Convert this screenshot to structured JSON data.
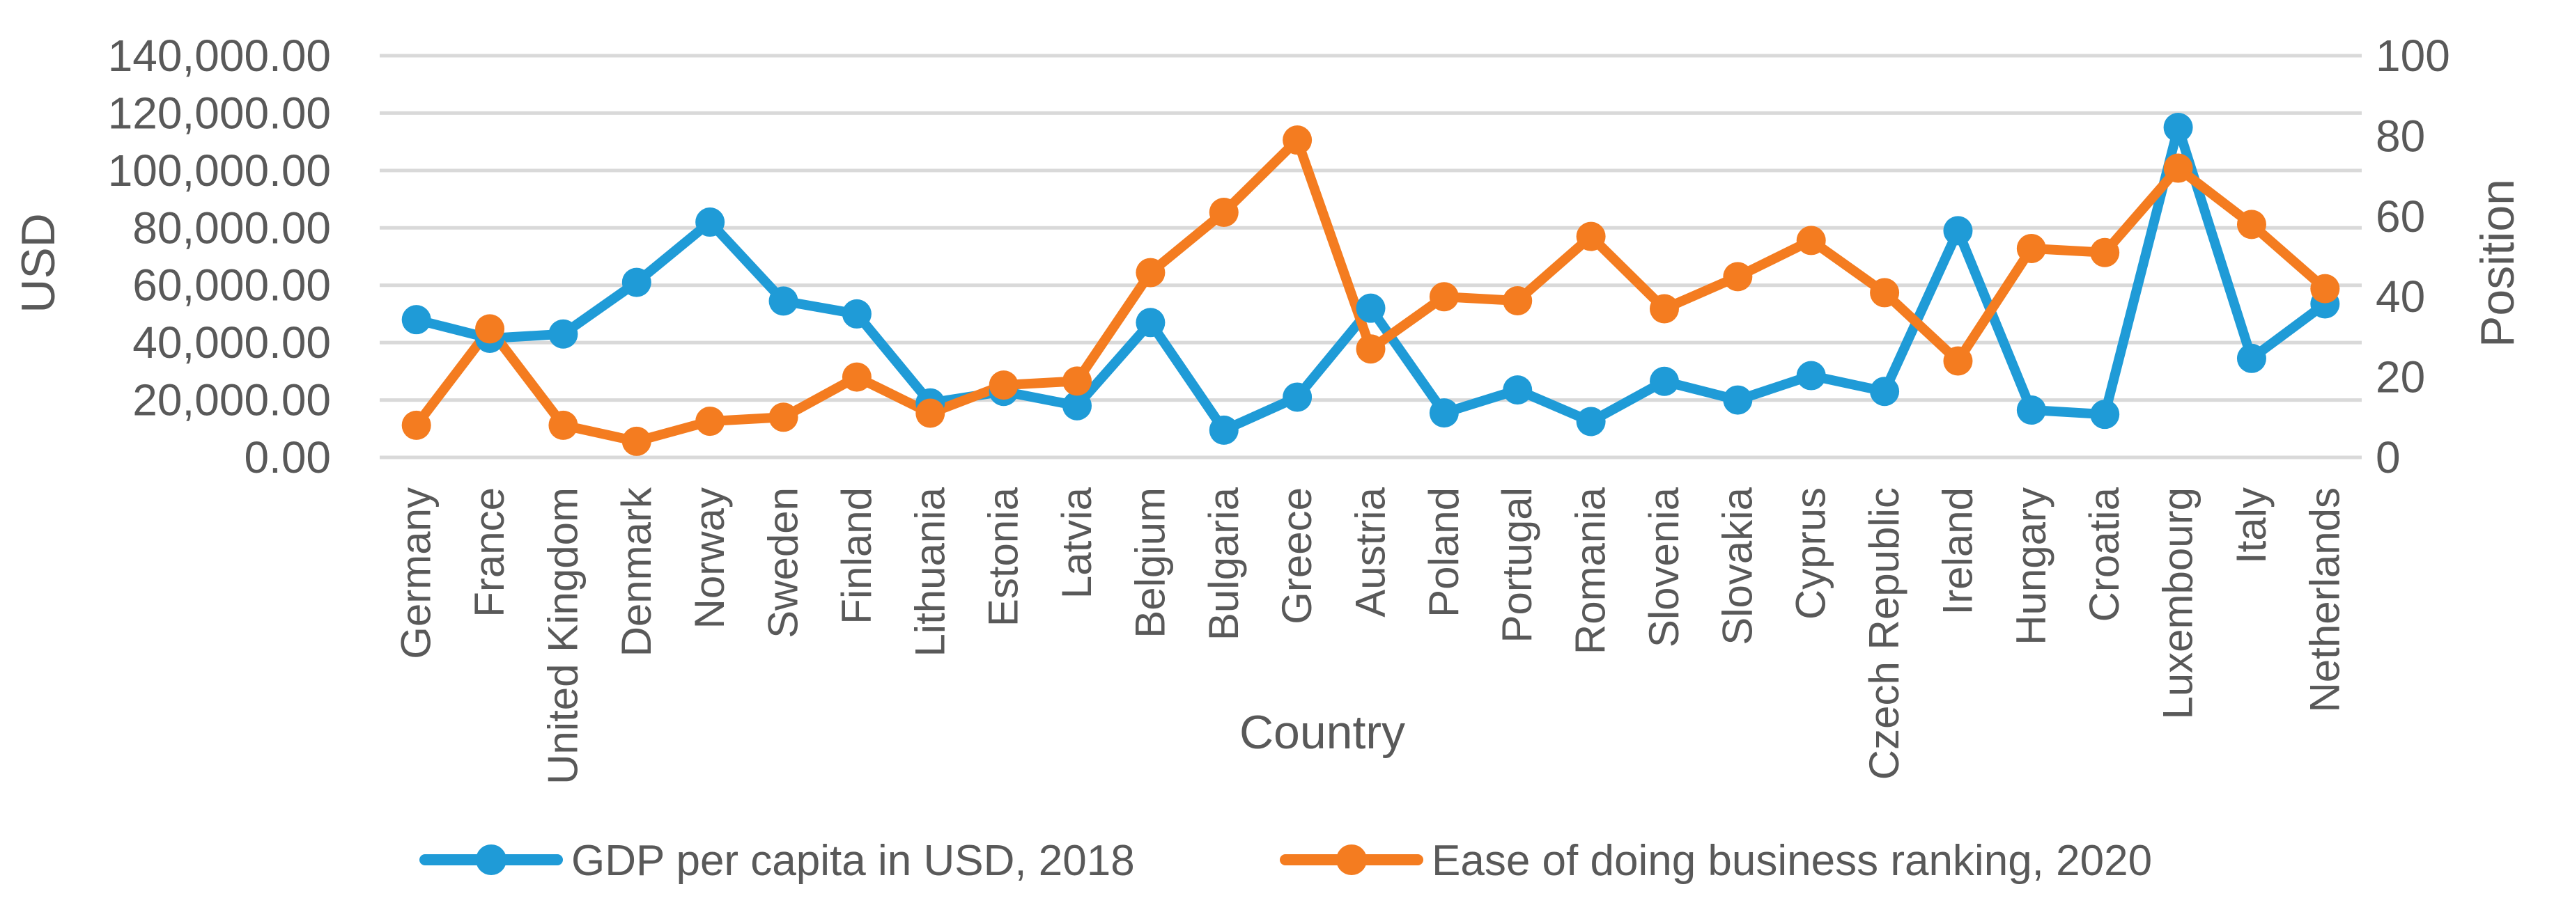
{
  "chart_data": {
    "type": "line",
    "categories": [
      "Germany",
      "France",
      "United Kingdom",
      "Denmark",
      "Norway",
      "Sweden",
      "Finland",
      "Lithuania",
      "Estonia",
      "Latvia",
      "Belgium",
      "Bulgaria",
      "Greece",
      "Austria",
      "Poland",
      "Portugal",
      "Romania",
      "Slovenia",
      "Slovakia",
      "Cyprus",
      "Czech Republic",
      "Ireland",
      "Hungary",
      "Croatia",
      "Luxembourg",
      "Italy",
      "Netherlands"
    ],
    "xlabel": "Country",
    "ylabel": "USD",
    "y2label": "Position",
    "ylim": [
      0,
      140000
    ],
    "y2lim": [
      0,
      100
    ],
    "yticks": [
      "0.00",
      "20,000.00",
      "40,000.00",
      "60,000.00",
      "80,000.00",
      "100,000.00",
      "120,000.00",
      "140,000.00"
    ],
    "y2ticks": [
      "0",
      "20",
      "40",
      "60",
      "80",
      "100"
    ],
    "grid": true,
    "legend_position": "bottom",
    "series": [
      {
        "name": "GDP per capita in USD, 2018",
        "axis": "left",
        "color": "#1f9bd7",
        "values": [
          48000,
          41500,
          43000,
          61000,
          82000,
          54500,
          50000,
          19000,
          23000,
          18000,
          47000,
          9500,
          21000,
          52000,
          15500,
          23500,
          12500,
          26500,
          20000,
          28500,
          23000,
          79000,
          16500,
          15000,
          115000,
          34500,
          53500
        ]
      },
      {
        "name": "Ease of doing business ranking, 2020",
        "axis": "right",
        "color": "#f47c20",
        "values": [
          8,
          32,
          8,
          4,
          9,
          10,
          20,
          11,
          18,
          19,
          46,
          61,
          79,
          27,
          40,
          39,
          55,
          37,
          45,
          54,
          41,
          24,
          52,
          51,
          72,
          58,
          42
        ]
      }
    ]
  }
}
